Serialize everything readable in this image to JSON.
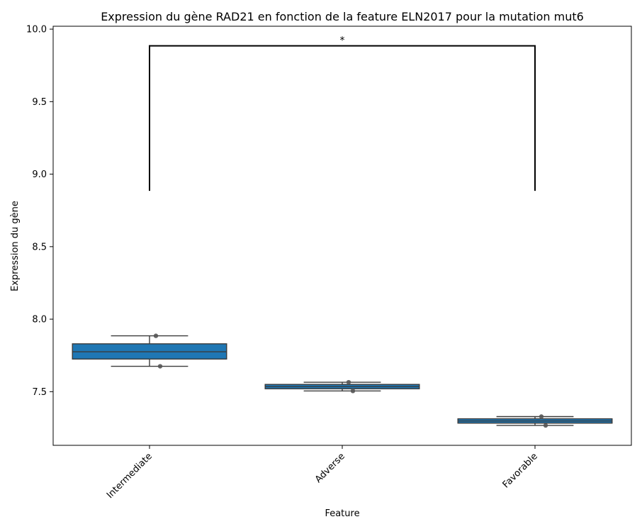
{
  "chart_data": {
    "type": "box",
    "title": "Expression du gène RAD21 en fonction de la feature ELN2017 pour la mutation mut6",
    "xlabel": "Feature",
    "ylabel": "Expression du gène",
    "categories": [
      "Intermediate",
      "Adverse",
      "Favorable"
    ],
    "ylim": [
      7.13,
      10.02
    ],
    "yticks": [
      7.5,
      8.0,
      8.5,
      9.0,
      9.5,
      10.0
    ],
    "ytick_labels": [
      "7.5",
      "8.0",
      "8.5",
      "9.0",
      "9.5",
      "10.0"
    ],
    "grid": false,
    "box_color": "#1f77b4",
    "boxes": [
      {
        "category": "Intermediate",
        "whisker_low": 7.675,
        "q1": 7.725,
        "median": 7.775,
        "q3": 7.83,
        "whisker_high": 7.885,
        "points": [
          7.885,
          7.675
        ]
      },
      {
        "category": "Adverse",
        "whisker_low": 7.505,
        "q1": 7.52,
        "median": 7.535,
        "q3": 7.55,
        "whisker_high": 7.565,
        "points": [
          7.565,
          7.505
        ]
      },
      {
        "category": "Favorable",
        "whisker_low": 7.267,
        "q1": 7.283,
        "median": 7.298,
        "q3": 7.313,
        "whisker_high": 7.328,
        "points": [
          7.328,
          7.267
        ]
      }
    ],
    "annotations": [
      {
        "type": "significance-bracket",
        "from": "Intermediate",
        "to": "Favorable",
        "y_bottom": 8.885,
        "y_top": 9.885,
        "label": "*"
      }
    ]
  }
}
